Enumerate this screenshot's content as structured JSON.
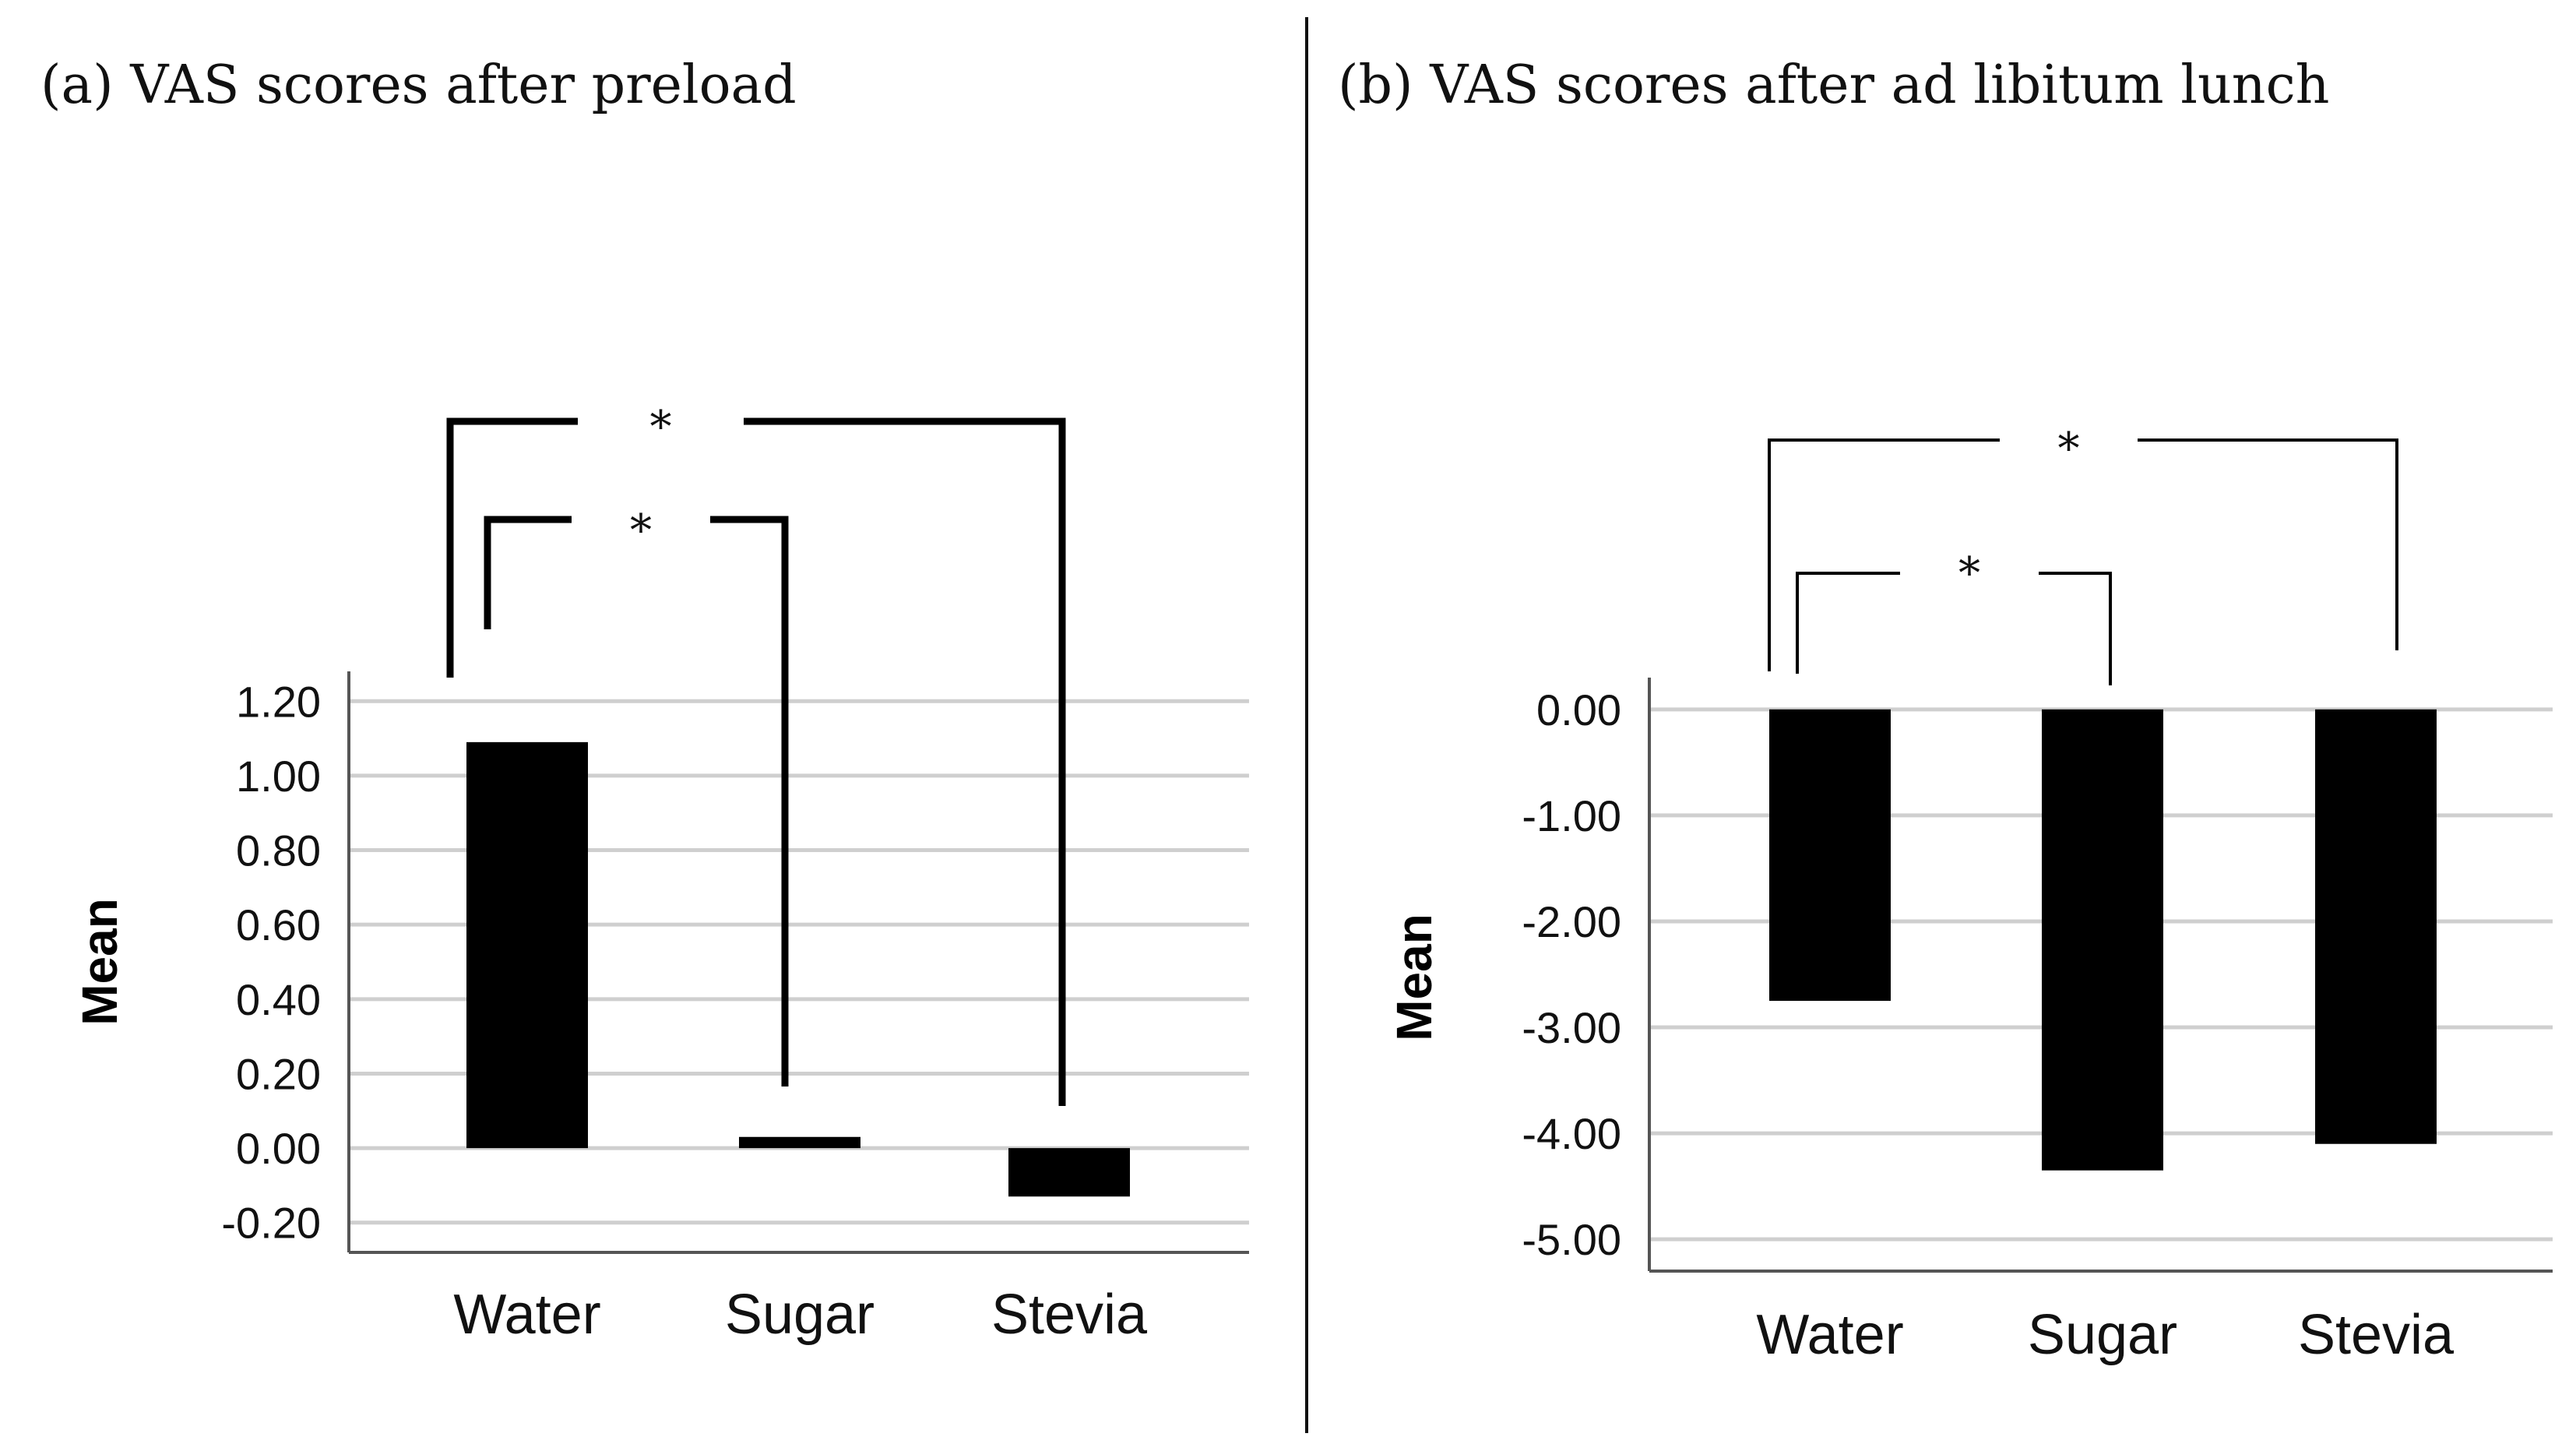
{
  "chart_data": [
    {
      "type": "bar",
      "title": "(a) VAS scores after preload",
      "ylabel": "Mean",
      "xlabel": "",
      "categories": [
        "Water",
        "Sugar",
        "Stevia"
      ],
      "values": [
        1.09,
        0.03,
        -0.13
      ],
      "ylim": [
        -0.28,
        1.28
      ],
      "yticks": [
        1.2,
        1.0,
        0.8,
        0.6,
        0.4,
        0.2,
        0.0,
        -0.2
      ],
      "ytick_labels": [
        "1.20",
        "1.00",
        "0.80",
        "0.60",
        "0.40",
        "0.20",
        "0.00",
        "-0.20"
      ],
      "grid": true,
      "significance": [
        {
          "from": "Water",
          "to": "Sugar",
          "label": "*"
        },
        {
          "from": "Water",
          "to": "Stevia",
          "label": "*"
        }
      ]
    },
    {
      "type": "bar",
      "title": "(b) VAS scores after ad libitum lunch",
      "ylabel": "Mean",
      "xlabel": "",
      "categories": [
        "Water",
        "Sugar",
        "Stevia"
      ],
      "values": [
        -2.75,
        -4.35,
        -4.1
      ],
      "ylim": [
        -5.3,
        0.3
      ],
      "yticks": [
        0,
        -1,
        -2,
        -3,
        -4,
        -5
      ],
      "ytick_labels": [
        "0.00",
        "-1.00",
        "-2.00",
        "-3.00",
        "-4.00",
        "-5.00"
      ],
      "grid": true,
      "significance": [
        {
          "from": "Water",
          "to": "Sugar",
          "label": "*"
        },
        {
          "from": "Water",
          "to": "Stevia",
          "label": "*"
        }
      ]
    }
  ]
}
